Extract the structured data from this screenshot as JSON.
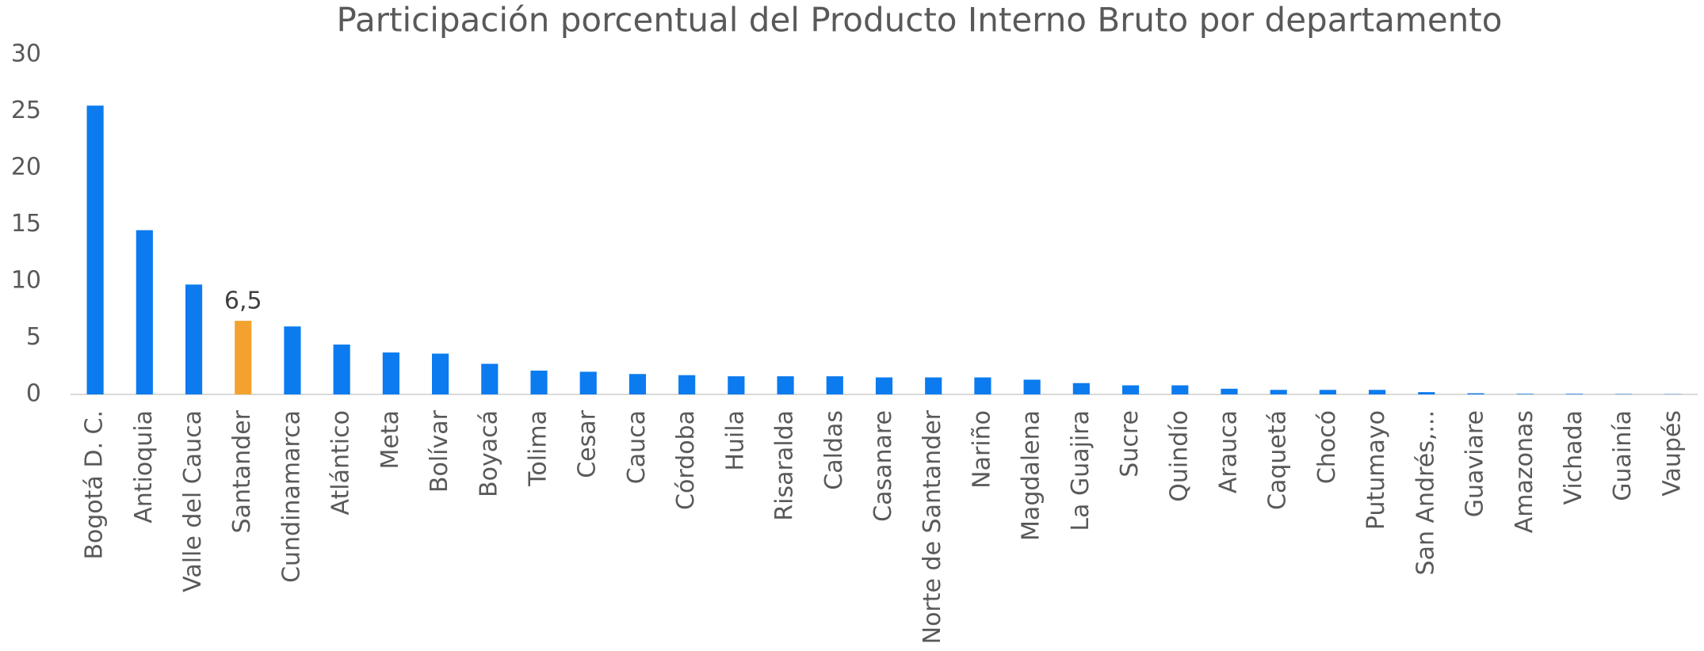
{
  "chart_data": {
    "type": "bar",
    "title": "Participación porcentual del Producto Interno Bruto por departamento",
    "categories": [
      "Bogotá D. C.",
      "Antioquia",
      "Valle del Cauca",
      "Santander",
      "Cundinamarca",
      "Atlántico",
      "Meta",
      "Bolívar",
      "Boyacá",
      "Tolima",
      "Cesar",
      "Cauca",
      "Córdoba",
      "Huila",
      "Risaralda",
      "Caldas",
      "Casanare",
      "Norte de Santander",
      "Nariño",
      "Magdalena",
      "La Guajira",
      "Sucre",
      "Quindío",
      "Arauca",
      "Caquetá",
      "Chocó",
      "Putumayo",
      "San Andrés,...",
      "Guaviare",
      "Amazonas",
      "Vichada",
      "Guainía",
      "Vaupés"
    ],
    "values": [
      25.5,
      14.5,
      9.7,
      6.5,
      6.0,
      4.4,
      3.7,
      3.6,
      2.7,
      2.1,
      2.0,
      1.8,
      1.7,
      1.6,
      1.6,
      1.6,
      1.5,
      1.5,
      1.5,
      1.3,
      1.0,
      0.8,
      0.8,
      0.5,
      0.4,
      0.4,
      0.4,
      0.2,
      0.1,
      0.05,
      0.05,
      0.03,
      0.02
    ],
    "value_labels": [
      null,
      null,
      null,
      "6,5",
      null,
      null,
      null,
      null,
      null,
      null,
      null,
      null,
      null,
      null,
      null,
      null,
      null,
      null,
      null,
      null,
      null,
      null,
      null,
      null,
      null,
      null,
      null,
      null,
      null,
      null,
      null,
      null,
      null
    ],
    "colors": [
      "#0b7bef",
      "#0b7bef",
      "#0b7bef",
      "#f4a22f",
      "#0b7bef",
      "#0b7bef",
      "#0b7bef",
      "#0b7bef",
      "#0b7bef",
      "#0b7bef",
      "#0b7bef",
      "#0b7bef",
      "#0b7bef",
      "#0b7bef",
      "#0b7bef",
      "#0b7bef",
      "#0b7bef",
      "#0b7bef",
      "#0b7bef",
      "#0b7bef",
      "#0b7bef",
      "#0b7bef",
      "#0b7bef",
      "#0b7bef",
      "#0b7bef",
      "#0b7bef",
      "#0b7bef",
      "#0b7bef",
      "#0b7bef",
      "#0b7bef",
      "#0b7bef",
      "#0b7bef",
      "#0b7bef"
    ],
    "ylim": [
      0,
      30
    ],
    "yticks": [
      0,
      5,
      10,
      15,
      20,
      25,
      30
    ],
    "grid": false
  }
}
